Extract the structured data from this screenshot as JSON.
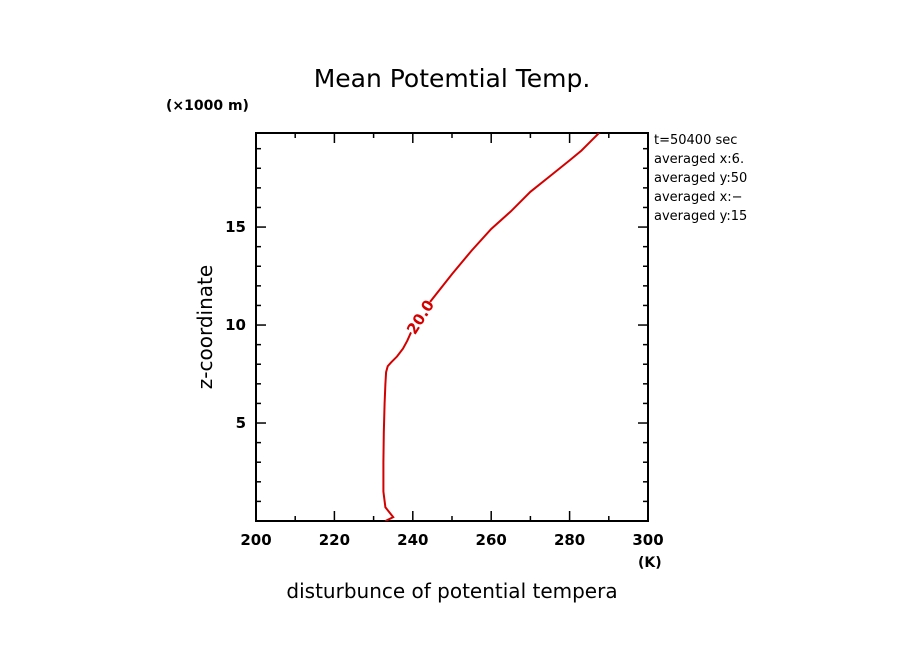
{
  "chart_data": {
    "type": "line",
    "title": "Mean Potemtial Temp.",
    "xlabel": "disturbunce of potential tempera",
    "ylabel": "z-coordinate",
    "x_unit": "(K)",
    "y_unit": "(×1000 m)",
    "xlim": [
      200,
      300
    ],
    "ylim": [
      0,
      19.8
    ],
    "x_ticks": [
      200,
      220,
      240,
      260,
      280,
      300
    ],
    "x_tick_labels": [
      "200",
      "220",
      "240",
      "260",
      "280",
      "300"
    ],
    "y_ticks": [
      5,
      10,
      15
    ],
    "y_tick_labels": [
      "5",
      "10",
      "15"
    ],
    "grid": false,
    "color": "#d40000",
    "contour_label": "20.0",
    "series": [
      {
        "x": [
          233.0,
          235.0,
          233.0,
          232.5,
          232.5,
          232.6,
          232.8,
          233.0,
          233.2,
          233.6,
          234.5,
          236.0,
          237.5,
          238.6,
          239.5,
          244.5,
          250.0,
          255.0,
          260.0,
          265.0,
          270.0,
          275.0,
          280.0,
          283.0,
          285.5,
          287.5
        ],
        "y": [
          0.0,
          0.2,
          0.7,
          1.5,
          3.0,
          4.5,
          6.0,
          7.0,
          7.6,
          7.9,
          8.1,
          8.4,
          8.8,
          9.2,
          9.6,
          11.2,
          12.6,
          13.8,
          14.9,
          15.8,
          16.8,
          17.6,
          18.4,
          18.9,
          19.4,
          19.8
        ]
      }
    ]
  },
  "info_lines": [
    "t=50400 sec",
    "averaged  x:6.",
    "averaged  y:50",
    "averaged  x:−",
    "averaged  y:15"
  ]
}
